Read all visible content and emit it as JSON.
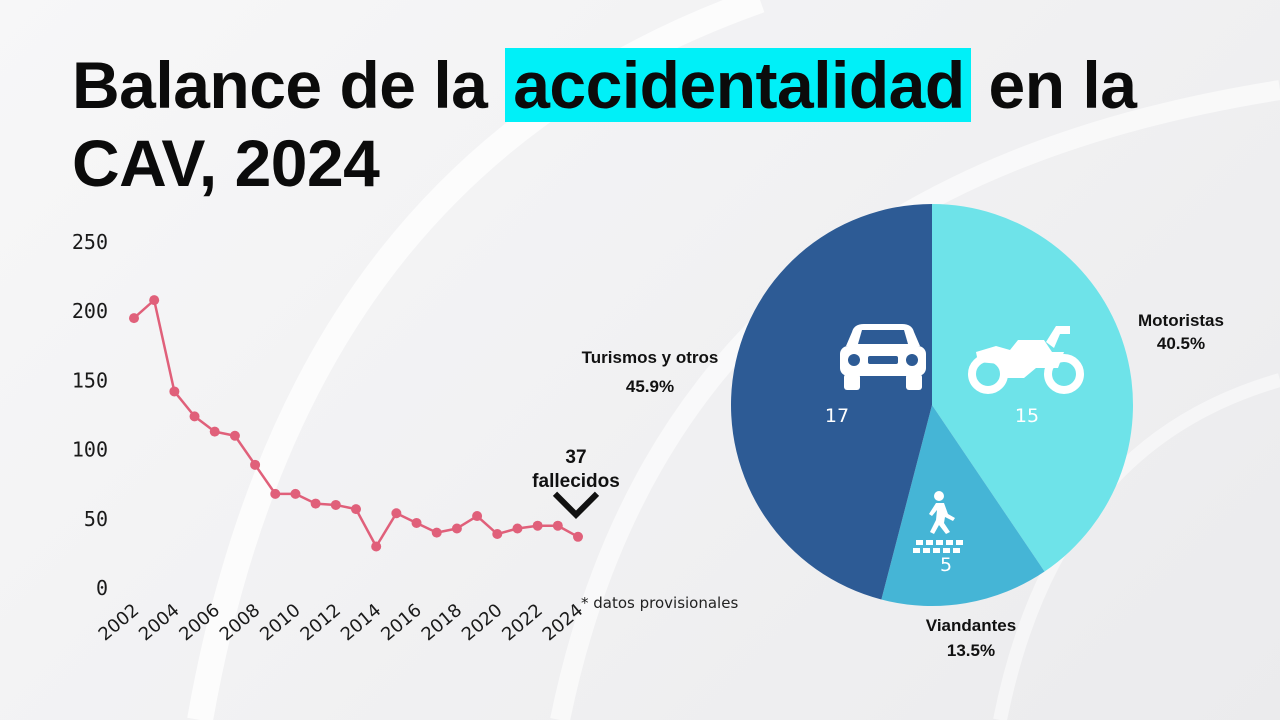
{
  "title": {
    "before": "Balance de la ",
    "highlight": "accidentalidad",
    "after": " en la CAV, 2024"
  },
  "colors": {
    "highlight": "#00f0f8",
    "line": "#e0607a",
    "pie": [
      "#2d5b95",
      "#6ee3e9",
      "#45b5d6"
    ]
  },
  "chart_data": [
    {
      "type": "line",
      "title": "",
      "xlabel": "",
      "ylabel": "",
      "ylim": [
        0,
        250
      ],
      "yticks": [
        0,
        50,
        100,
        150,
        200,
        250
      ],
      "xticks": [
        2002,
        2004,
        2006,
        2008,
        2010,
        2012,
        2014,
        2016,
        2018,
        2020,
        2022,
        2024
      ],
      "grid": false,
      "series": [
        {
          "x": [
            2002,
            2003,
            2004,
            2005,
            2006,
            2007,
            2008,
            2009,
            2010,
            2011,
            2012,
            2013,
            2014,
            2015,
            2016,
            2017,
            2018,
            2019,
            2020,
            2021,
            2022,
            2023,
            2024
          ],
          "values": [
            195,
            208,
            142,
            124,
            113,
            110,
            89,
            68,
            68,
            61,
            60,
            57,
            30,
            54,
            47,
            40,
            43,
            52,
            39,
            43,
            45,
            45,
            37
          ]
        }
      ],
      "annotations": [
        {
          "x": 2024,
          "y": 37,
          "value": "37",
          "text": "fallecidos"
        }
      ],
      "footnote": "* datos provisionales"
    },
    {
      "type": "pie",
      "slices": [
        {
          "label": "Turismos y otros",
          "value": 17,
          "percent": "45.9%",
          "icon": "car-icon"
        },
        {
          "label": "Motoristas",
          "value": 15,
          "percent": "40.5%",
          "icon": "motorcycle-icon"
        },
        {
          "label": "Viandantes",
          "value": 5,
          "percent": "13.5%",
          "icon": "pedestrian-icon"
        }
      ]
    }
  ]
}
